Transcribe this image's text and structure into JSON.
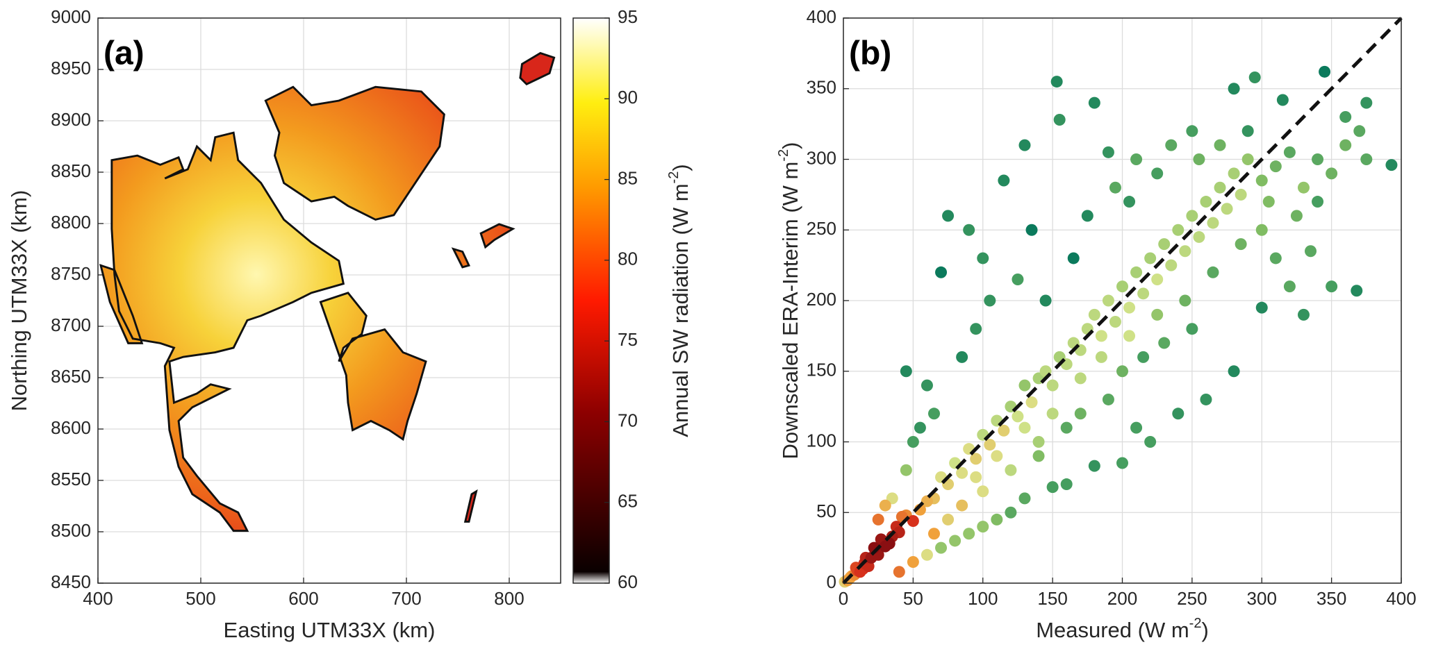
{
  "chart_data": [
    {
      "type": "map",
      "panel_label": "(a)",
      "xlabel": "Easting UTM33X (km)",
      "ylabel": "Northing UTM33X (km)",
      "xlim": [
        400,
        850
      ],
      "ylim": [
        8450,
        9000
      ],
      "xticks": [
        400,
        500,
        600,
        700,
        800
      ],
      "yticks": [
        8450,
        8500,
        8550,
        8600,
        8650,
        8700,
        8750,
        8800,
        8850,
        8900,
        8950,
        9000
      ],
      "grid": true,
      "colorbar": {
        "label": {
          "text": "Annual SW radiation (W m",
          "sup": "-2",
          "tail": ")"
        },
        "lim": [
          60,
          95
        ],
        "ticks": [
          60,
          65,
          70,
          75,
          80,
          85,
          90,
          95
        ],
        "colormap": "hot"
      }
    },
    {
      "type": "scatter",
      "panel_label": "(b)",
      "xlabel": {
        "text": "Measured (W m",
        "sup": "-2",
        "tail": ")"
      },
      "ylabel": {
        "text": "Downscaled ERA-Interim (W m",
        "sup": "-2",
        "tail": ")"
      },
      "xlim": [
        0,
        400
      ],
      "ylim": [
        0,
        400
      ],
      "xticks": [
        0,
        50,
        100,
        150,
        200,
        250,
        300,
        350,
        400
      ],
      "yticks": [
        0,
        50,
        100,
        150,
        200,
        250,
        300,
        350,
        400
      ],
      "grid": true,
      "colormap": [
        "#0b7a5c",
        "#3f9a5e",
        "#86bf63",
        "#d9e58c",
        "#f0a03a",
        "#d8321c",
        "#8a0f12"
      ],
      "reference_line": {
        "x": [
          0,
          400
        ],
        "y": [
          0,
          400
        ],
        "color": "#111111",
        "dash": true
      },
      "x": [
        1,
        3,
        5,
        8,
        10,
        12,
        15,
        18,
        20,
        22,
        25,
        28,
        30,
        35,
        38,
        40,
        45,
        50,
        55,
        60,
        65,
        70,
        75,
        80,
        85,
        90,
        95,
        100,
        105,
        110,
        115,
        120,
        125,
        130,
        135,
        140,
        145,
        150,
        155,
        160,
        165,
        170,
        175,
        180,
        185,
        190,
        195,
        200,
        205,
        210,
        215,
        220,
        225,
        230,
        235,
        240,
        245,
        250,
        255,
        260,
        265,
        270,
        275,
        280,
        285,
        290,
        300,
        310,
        320,
        330,
        340,
        350,
        360,
        370,
        375,
        393,
        45,
        50,
        60,
        70,
        75,
        90,
        100,
        115,
        130,
        153,
        155,
        180,
        190,
        210,
        250,
        280,
        295,
        315,
        345,
        368,
        350,
        335,
        300,
        280,
        260,
        240,
        220,
        210,
        200,
        180,
        160,
        150,
        140,
        130,
        120,
        110,
        100,
        90,
        80,
        70,
        60,
        50,
        40,
        35,
        30,
        25,
        45,
        55,
        65,
        85,
        95,
        105,
        125,
        135,
        145,
        165,
        175,
        195,
        205,
        225,
        235,
        255,
        270,
        290,
        300,
        310,
        320,
        330,
        250,
        230,
        215,
        200,
        190,
        170,
        160,
        140,
        120,
        100,
        85,
        75,
        65,
        375,
        360,
        340,
        325,
        305,
        285,
        265,
        245,
        225,
        205,
        185,
        170,
        150,
        130,
        110,
        95,
        6,
        9,
        14,
        16,
        24,
        27,
        33,
        42
      ],
      "values": [
        1,
        2,
        4,
        6,
        9,
        8,
        14,
        12,
        18,
        25,
        20,
        30,
        26,
        33,
        40,
        36,
        48,
        44,
        52,
        58,
        60,
        75,
        70,
        85,
        78,
        95,
        88,
        105,
        98,
        115,
        108,
        125,
        118,
        140,
        128,
        145,
        150,
        140,
        160,
        155,
        170,
        165,
        180,
        190,
        175,
        200,
        185,
        210,
        195,
        220,
        205,
        230,
        215,
        240,
        225,
        250,
        235,
        260,
        245,
        270,
        255,
        280,
        265,
        290,
        275,
        300,
        285,
        295,
        305,
        280,
        300,
        290,
        310,
        320,
        300,
        296,
        150,
        100,
        140,
        220,
        260,
        250,
        230,
        285,
        310,
        355,
        328,
        340,
        305,
        300,
        320,
        350,
        358,
        342,
        362,
        207,
        210,
        235,
        195,
        150,
        130,
        120,
        100,
        110,
        85,
        83,
        70,
        68,
        90,
        60,
        50,
        45,
        40,
        35,
        30,
        25,
        20,
        15,
        8,
        60,
        55,
        45,
        80,
        110,
        120,
        160,
        180,
        200,
        215,
        250,
        200,
        230,
        260,
        280,
        270,
        290,
        310,
        300,
        310,
        320,
        250,
        230,
        210,
        190,
        180,
        170,
        160,
        150,
        130,
        120,
        110,
        100,
        80,
        65,
        55,
        45,
        35,
        340,
        330,
        270,
        260,
        270,
        240,
        220,
        200,
        190,
        175,
        160,
        145,
        120,
        110,
        90,
        75,
        5,
        11,
        10,
        18,
        22,
        31,
        28,
        47
      ]
    }
  ]
}
